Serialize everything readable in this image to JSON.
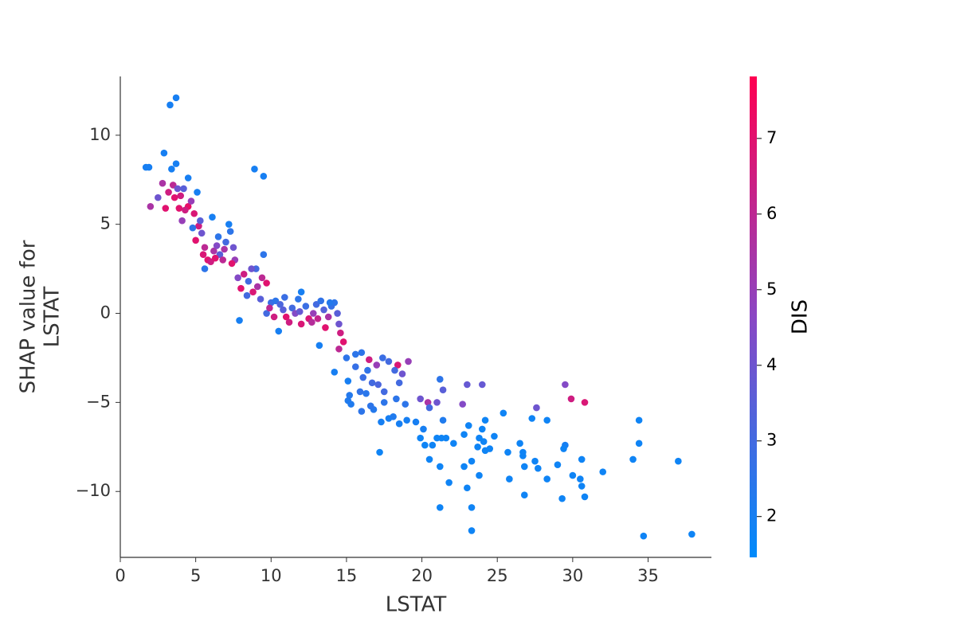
{
  "chart_data": {
    "type": "scatter",
    "xlabel": "LSTAT",
    "ylabel": [
      "SHAP value for",
      "LSTAT"
    ],
    "colorbar_label": "DIS",
    "colormap": [
      "#008bfb",
      "#8a47c4",
      "#ff0051"
    ],
    "xlim": [
      0,
      39.2
    ],
    "xticks": [
      0,
      5,
      10,
      15,
      20,
      25,
      30,
      35
    ],
    "ylim": [
      -13.7,
      13.3
    ],
    "yticks": [
      {
        "value": -10,
        "label": "−10"
      },
      {
        "value": -5,
        "label": "−5"
      },
      0,
      5,
      10
    ],
    "colorbar_lim": [
      1.46,
      7.82
    ],
    "colorbar_ticks": [
      2,
      3,
      4,
      5,
      6,
      7
    ],
    "x": [
      30.8,
      29.9,
      29.5,
      27.6,
      24.0,
      23.0,
      21.2,
      21.4,
      20.4,
      21.0,
      22.7,
      19.9,
      20.5,
      21.4,
      34.4,
      34.4,
      37.0,
      34.0,
      32.0,
      34.7,
      37.9,
      30.6,
      30.8,
      30.6,
      30.5,
      30.0,
      29.5,
      29.4,
      29.0,
      29.3,
      28.3,
      28.3,
      27.3,
      27.5,
      27.7,
      26.8,
      26.7,
      26.7,
      26.5,
      26.8,
      25.7,
      25.8,
      25.4,
      24.2,
      24.0,
      24.5,
      24.1,
      23.8,
      23.7,
      23.8,
      24.8,
      24.2,
      23.1,
      22.8,
      23.3,
      23.0,
      22.8,
      23.3,
      23.3,
      21.2,
      21.8,
      21.2,
      20.5,
      21.3,
      21.0,
      21.6,
      22.1,
      20.7,
      20.2,
      19.9,
      20.1,
      19.6,
      19.0,
      18.5,
      17.8,
      17.2,
      17.3,
      16.8,
      18.1,
      18.9,
      17.5,
      16.0,
      15.3,
      15.1,
      15.2,
      16.3,
      16.6,
      15.9,
      16.7,
      17.5,
      18.3,
      18.5,
      18.7,
      18.4,
      18.2,
      17.8,
      17.4,
      19.1,
      17.0,
      16.5,
      16.0,
      15.6,
      15.0,
      14.5,
      14.8,
      14.6,
      13.2,
      14.2,
      15.1,
      15.6,
      16.1,
      17.1,
      16.4,
      9.7,
      10.0,
      10.3,
      10.6,
      10.8,
      11.0,
      11.2,
      11.4,
      11.8,
      12.0,
      12.3,
      12.5,
      12.8,
      13.0,
      13.3,
      13.5,
      13.8,
      14.0,
      14.2,
      14.4,
      13.6,
      12.0,
      10.5,
      10.2,
      9.9,
      11.6,
      12.7,
      14.5,
      13.1,
      11.9,
      10.9,
      13.9,
      9.5,
      9.0,
      9.4,
      9.7,
      9.1,
      8.5,
      8.2,
      7.8,
      8.0,
      8.4,
      8.8,
      9.3,
      7.6,
      7.9,
      8.7,
      8.9,
      9.5,
      1.7,
      1.9,
      2.9,
      3.3,
      3.7,
      3.7,
      3.4,
      2.0,
      2.5,
      2.8,
      3.0,
      3.2,
      3.5,
      3.8,
      4.0,
      4.2,
      4.5,
      4.5,
      4.7,
      4.9,
      5.1,
      5.2,
      5.4,
      5.0,
      5.6,
      5.8,
      6.0,
      5.6,
      6.2,
      6.4,
      6.6,
      6.8,
      7.0,
      7.2,
      7.3,
      7.5,
      7.4,
      6.1,
      6.5,
      6.9,
      3.9,
      4.3,
      4.1,
      3.6,
      4.8,
      5.3,
      5.5,
      6.3
    ],
    "values": [
      -5.0,
      -4.8,
      -4.0,
      -5.3,
      -4.0,
      -4.0,
      -3.7,
      -4.3,
      -5.0,
      -5.0,
      -5.1,
      -4.8,
      -5.3,
      -6.0,
      -6.0,
      -7.3,
      -8.3,
      -8.2,
      -8.9,
      -12.5,
      -12.4,
      -8.2,
      -10.3,
      -9.7,
      -9.3,
      -9.1,
      -7.4,
      -7.6,
      -8.5,
      -10.4,
      -9.3,
      -6.0,
      -5.9,
      -8.3,
      -8.7,
      -10.2,
      -8.0,
      -7.8,
      -7.3,
      -8.6,
      -7.8,
      -9.3,
      -5.6,
      -6.0,
      -6.5,
      -7.6,
      -7.2,
      -7.0,
      -7.5,
      -9.1,
      -6.9,
      -7.7,
      -6.3,
      -6.8,
      -8.3,
      -9.8,
      -8.6,
      -10.9,
      -12.2,
      -10.9,
      -9.5,
      -8.6,
      -8.2,
      -7.0,
      -7.0,
      -7.0,
      -7.3,
      -7.4,
      -7.4,
      -7.0,
      -6.5,
      -6.1,
      -6.0,
      -6.2,
      -5.9,
      -7.8,
      -6.1,
      -5.4,
      -5.8,
      -5.1,
      -5.0,
      -5.5,
      -5.1,
      -4.9,
      -4.6,
      -4.5,
      -5.2,
      -4.4,
      -3.9,
      -4.4,
      -4.8,
      -3.9,
      -3.4,
      -2.9,
      -3.2,
      -2.7,
      -2.5,
      -2.7,
      -2.9,
      -2.6,
      -2.2,
      -2.3,
      -2.5,
      -2.0,
      -1.6,
      -1.1,
      -1.8,
      -3.3,
      -3.8,
      -3.0,
      -3.6,
      -4.0,
      -3.2,
      0.0,
      0.6,
      0.7,
      0.5,
      0.2,
      -0.2,
      -0.5,
      0.3,
      0.8,
      1.2,
      0.4,
      -0.3,
      0.0,
      0.5,
      0.7,
      0.2,
      -0.2,
      0.4,
      0.6,
      0.0,
      -0.8,
      -0.6,
      -1.0,
      -0.2,
      0.3,
      0.0,
      -0.5,
      -0.6,
      -0.3,
      0.1,
      0.9,
      0.6,
      3.3,
      2.5,
      2.0,
      1.7,
      1.5,
      1.8,
      2.2,
      2.0,
      1.4,
      1.0,
      1.2,
      0.8,
      3.0,
      -0.4,
      2.5,
      8.1,
      7.7,
      8.2,
      8.2,
      9.0,
      11.7,
      12.1,
      8.4,
      8.1,
      6.0,
      6.5,
      7.3,
      5.9,
      6.8,
      7.2,
      7.0,
      6.6,
      7.0,
      6.0,
      7.6,
      6.3,
      5.6,
      6.8,
      4.9,
      4.5,
      4.1,
      3.7,
      3.0,
      2.9,
      2.5,
      3.5,
      3.8,
      3.3,
      3.0,
      4.0,
      5.0,
      4.6,
      3.7,
      2.8,
      5.4,
      4.3,
      3.6,
      5.9,
      5.8,
      5.2,
      6.5,
      4.8,
      5.2,
      3.3,
      3.1
    ],
    "color_values": [
      6.8,
      6.5,
      4.5,
      4.0,
      3.8,
      3.8,
      2.5,
      3.5,
      5.5,
      4.0,
      4.5,
      4.0,
      3.0,
      2.2,
      1.8,
      1.8,
      1.8,
      1.8,
      1.8,
      1.8,
      1.8,
      1.8,
      1.8,
      1.8,
      1.8,
      1.8,
      2,
      1.8,
      1.8,
      1.8,
      1.8,
      1.8,
      1.8,
      1.8,
      1.8,
      1.8,
      1.8,
      1.8,
      1.8,
      1.8,
      1.8,
      1.8,
      1.8,
      1.8,
      1.8,
      1.8,
      1.8,
      1.8,
      1.8,
      1.8,
      1.8,
      1.8,
      1.8,
      1.8,
      1.8,
      1.8,
      1.8,
      1.8,
      1.8,
      1.8,
      1.8,
      1.8,
      1.8,
      1.8,
      1.8,
      1.8,
      1.8,
      1.8,
      1.8,
      1.8,
      2,
      2,
      2,
      2,
      2,
      1.8,
      2,
      2.3,
      2.2,
      2.5,
      2.5,
      2.5,
      2.2,
      2.2,
      2.3,
      2.4,
      2.5,
      2.6,
      3,
      3,
      2.5,
      3.0,
      4,
      6.8,
      3,
      3,
      2.8,
      5,
      5,
      6.5,
      2.5,
      2.5,
      2.5,
      6,
      7,
      6.5,
      2,
      2,
      2,
      2.7,
      2.8,
      3.2,
      2.6,
      3.0,
      2.8,
      2.5,
      3.2,
      3.5,
      7,
      6.5,
      3,
      2.5,
      2,
      2.8,
      6.8,
      5,
      3,
      2.6,
      3.4,
      5.5,
      2.7,
      2.5,
      3.5,
      7,
      6.8,
      2,
      6.5,
      6,
      4.5,
      5.8,
      4,
      6.2,
      3.8,
      2.8,
      2.3,
      2.5,
      3,
      6,
      7,
      5.5,
      3,
      6.5,
      4.5,
      7,
      3,
      6.8,
      3.5,
      5,
      2,
      4,
      2,
      2,
      2,
      2,
      2,
      2,
      2,
      2,
      2,
      5.5,
      4,
      5.5,
      7,
      6.5,
      6,
      4,
      6.5,
      3.5,
      7.2,
      2,
      5,
      6.8,
      2,
      6.5,
      4,
      7,
      6,
      7,
      6.5,
      2.5,
      5.5,
      4.5,
      3.5,
      6,
      3,
      2,
      2.5,
      4,
      7,
      2,
      2.5,
      5.5,
      7,
      6.5,
      5,
      7,
      2.5,
      3.5,
      6.8,
      7
    ]
  }
}
